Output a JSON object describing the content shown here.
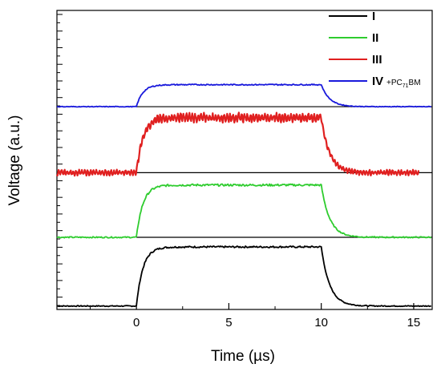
{
  "chart_data": {
    "type": "line",
    "xlabel": "Time (µs)",
    "ylabel": "Voltage (a.u.)",
    "xlim": [
      -4.3,
      16
    ],
    "x_ticks": [
      0,
      5,
      10,
      15
    ],
    "x_tick_labels": [
      "0",
      "5",
      "10",
      "15"
    ],
    "y_ticks": "unlabeled",
    "grid": false,
    "legend_position": "top-right",
    "series": [
      {
        "name": "I",
        "color": "#000000",
        "baseline": 0.0,
        "plateau": 0.86,
        "x_start": -4.3,
        "x_end": 16,
        "rise_start": 0.0,
        "fall_start": 10.0,
        "noise": 0.012
      },
      {
        "name": "II",
        "color": "#2ecc2e",
        "baseline": 1.0,
        "plateau": 1.76,
        "x_start": -4.3,
        "x_end": 16,
        "rise_start": 0.0,
        "fall_start": 10.0,
        "noise": 0.015
      },
      {
        "name": "III",
        "color": "#e02020",
        "baseline": 1.94,
        "plateau": 2.74,
        "x_start": -4.3,
        "x_end": 15.3,
        "rise_start": 0.0,
        "fall_start": 10.0,
        "noise": 0.05
      },
      {
        "name": "IV",
        "color": "#1a1adc",
        "baseline": 2.9,
        "plateau": 3.22,
        "x_start": -4.3,
        "x_end": 16,
        "rise_start": 0.0,
        "fall_start": 10.0,
        "noise": 0.008
      }
    ],
    "legend_sub": "+PC",
    "legend_sub_index": "71",
    "legend_sub_tail": "BM"
  }
}
